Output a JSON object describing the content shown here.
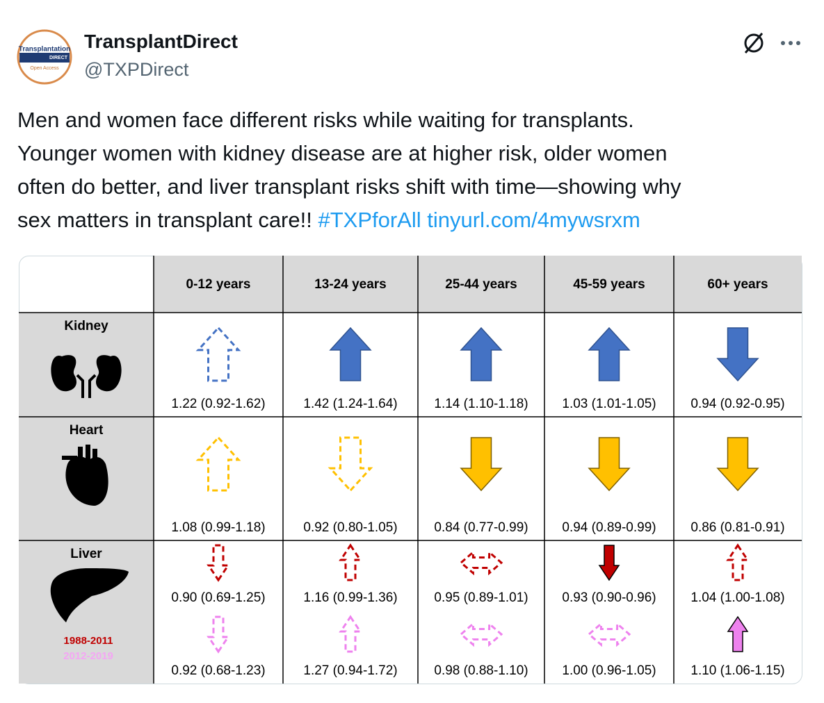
{
  "header": {
    "name": "TransplantDirect",
    "handle": "@TXPDirect",
    "avatar": [
      "Transplantation",
      "DIRECT",
      "Open Access"
    ]
  },
  "tweet": {
    "lines": [
      "Men and women face different risks while waiting for transplants.",
      "Younger women with kidney disease are at higher risk, older women",
      "often do better, and liver transplant risks shift with time—showing why",
      "sex matters in transplant care!!"
    ],
    "hashtag": "#TXPforAll",
    "link": "tinyurl.com/4mywsrxm"
  },
  "table": {
    "columns": [
      "0-12 years",
      "13-24 years",
      "25-44 years",
      "45-59 years",
      "60+ years"
    ],
    "rows": [
      {
        "label": "Kidney",
        "cells": [
          "1.22 (0.92-1.62)",
          "1.42 (1.24-1.64)",
          "1.14 (1.10-1.18)",
          "1.03 (1.01-1.05)",
          "0.94 (0.92-0.95)"
        ]
      },
      {
        "label": "Heart",
        "cells": [
          "1.08 (0.99-1.18)",
          "0.92 (0.80-1.05)",
          "0.84 (0.77-0.99)",
          "0.94 (0.89-0.99)",
          "0.86 (0.81-0.91)"
        ]
      },
      {
        "label": "Liver",
        "legend": [
          "1988-2011",
          "2012-2019"
        ],
        "cells": [
          [
            "0.90 (0.69-1.25)",
            "0.92 (0.68-1.23)"
          ],
          [
            "1.16 (0.99-1.36)",
            "1.27 (0.94-1.72)"
          ],
          [
            "0.95 (0.89-1.01)",
            "0.98 (0.88-1.10)"
          ],
          [
            "0.93 (0.90-0.96)",
            "1.00 (0.96-1.05)"
          ],
          [
            "1.04 (1.00-1.08)",
            "1.10 (1.06-1.15)"
          ]
        ]
      }
    ]
  }
}
